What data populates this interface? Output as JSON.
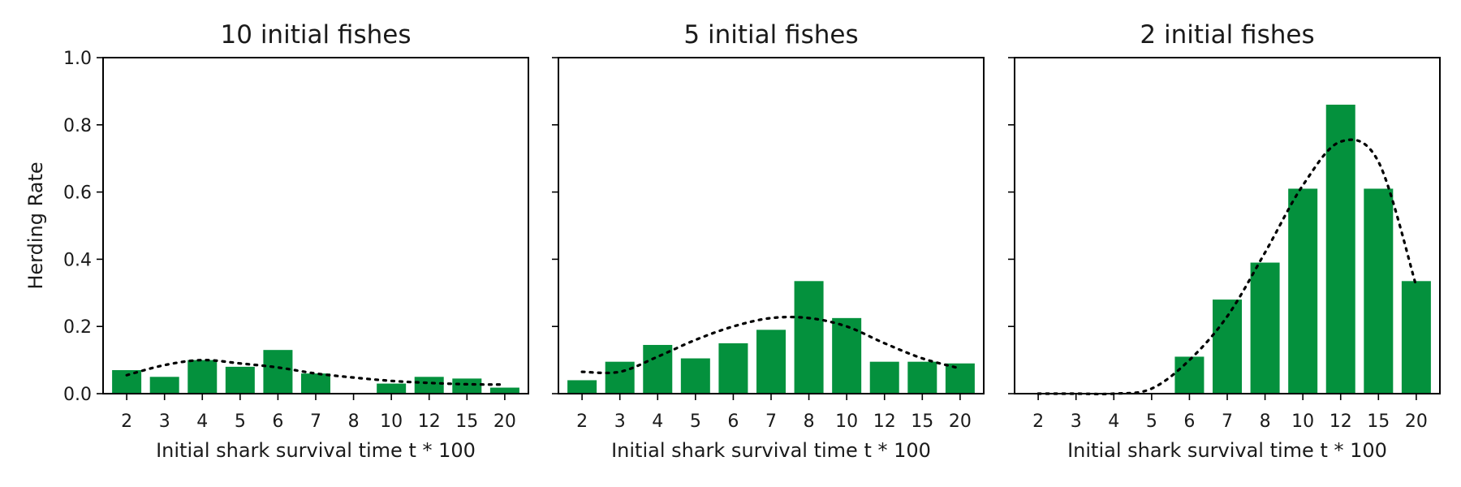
{
  "chart_data": [
    {
      "type": "bar",
      "title": "10 initial fishes",
      "xlabel": "Initial shark survival time t * 100",
      "ylabel": "Herding Rate",
      "categories": [
        "2",
        "3",
        "4",
        "5",
        "6",
        "7",
        "8",
        "10",
        "12",
        "15",
        "20"
      ],
      "values": [
        0.07,
        0.05,
        0.1,
        0.08,
        0.13,
        0.06,
        0.0,
        0.03,
        0.05,
        0.045,
        0.018
      ],
      "trend": [
        0.055,
        0.085,
        0.1,
        0.09,
        0.078,
        0.06,
        0.048,
        0.038,
        0.032,
        0.028,
        0.027
      ],
      "ylim": [
        0,
        1.0
      ],
      "yticks": [
        "0.0",
        "0.2",
        "0.4",
        "0.6",
        "0.8",
        "1.0"
      ],
      "bar_color": "#04913d",
      "trend_style": "dotted black"
    },
    {
      "type": "bar",
      "title": "5 initial fishes",
      "xlabel": "Initial shark survival time t * 100",
      "ylabel": "",
      "categories": [
        "2",
        "3",
        "4",
        "5",
        "6",
        "7",
        "8",
        "10",
        "12",
        "15",
        "20"
      ],
      "values": [
        0.04,
        0.095,
        0.145,
        0.105,
        0.15,
        0.19,
        0.335,
        0.225,
        0.095,
        0.095,
        0.09
      ],
      "trend": [
        0.065,
        0.065,
        0.11,
        0.16,
        0.2,
        0.225,
        0.225,
        0.2,
        0.15,
        0.105,
        0.075
      ],
      "ylim": [
        0,
        1.0
      ],
      "yticks": [
        "0.0",
        "0.2",
        "0.4",
        "0.6",
        "0.8",
        "1.0"
      ],
      "bar_color": "#04913d",
      "trend_style": "dotted black"
    },
    {
      "type": "bar",
      "title": "2 initial fishes",
      "xlabel": "Initial shark survival time t * 100",
      "ylabel": "",
      "categories": [
        "2",
        "3",
        "4",
        "5",
        "6",
        "7",
        "8",
        "10",
        "12",
        "15",
        "20"
      ],
      "values": [
        0.0,
        0.0,
        0.0,
        0.0,
        0.11,
        0.28,
        0.39,
        0.61,
        0.86,
        0.61,
        0.335
      ],
      "trend": [
        0.0,
        0.0,
        0.0,
        0.015,
        0.1,
        0.23,
        0.42,
        0.62,
        0.75,
        0.69,
        0.32
      ],
      "ylim": [
        0,
        1.0
      ],
      "yticks": [
        "0.0",
        "0.2",
        "0.4",
        "0.6",
        "0.8",
        "1.0"
      ],
      "bar_color": "#04913d",
      "trend_style": "dotted black"
    }
  ]
}
